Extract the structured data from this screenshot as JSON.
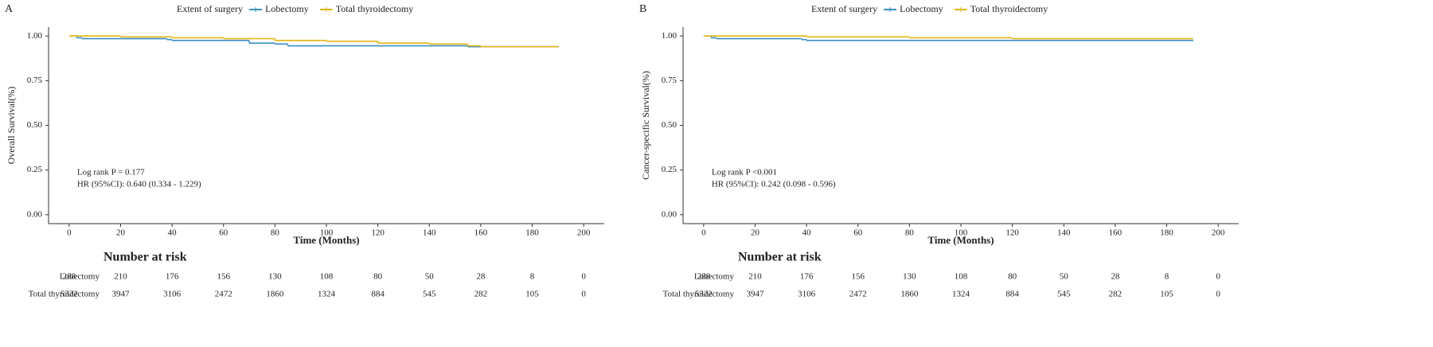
{
  "chart_data": [
    {
      "type": "step",
      "panel_label": "A",
      "legend_title": "Extent of surgery",
      "x_label": "Time (Months)",
      "y_label": "Overall Survival(%)",
      "xlim": [
        -8,
        208
      ],
      "xticks": [
        0,
        20,
        40,
        60,
        80,
        100,
        120,
        140,
        160,
        180,
        200
      ],
      "ylim": [
        -0.05,
        1.05
      ],
      "yticks": [
        {
          "value": 0,
          "label": "0.00"
        },
        {
          "value": 0.25,
          "label": "0.25"
        },
        {
          "value": 0.5,
          "label": "0.50"
        },
        {
          "value": 0.75,
          "label": "0.75"
        },
        {
          "value": 1,
          "label": "1.00"
        }
      ],
      "series": [
        {
          "name": "Lobectomy",
          "color": "#3b8fc4",
          "x": [
            0,
            3,
            5,
            10,
            38,
            40,
            70,
            72,
            80,
            85,
            100,
            155,
            190
          ],
          "values": [
            1,
            0.99,
            0.985,
            0.985,
            0.98,
            0.975,
            0.96,
            0.96,
            0.955,
            0.945,
            0.945,
            0.94,
            0.94
          ]
        },
        {
          "name": "Total thyroidectomy",
          "color": "#e3b515",
          "x": [
            0,
            20,
            40,
            60,
            80,
            100,
            120,
            140,
            155,
            160,
            190
          ],
          "values": [
            1,
            0.995,
            0.99,
            0.985,
            0.975,
            0.97,
            0.96,
            0.955,
            0.945,
            0.94,
            0.94
          ]
        }
      ],
      "annotations": [
        "Log rank P = 0.177",
        "HR (95%CI): 0.640 (0.334 - 1.229)"
      ],
      "risk_table": {
        "title": "Number at risk",
        "rows": [
          {
            "name": "Lobectomy",
            "counts": [
              288,
              210,
              176,
              156,
              130,
              108,
              80,
              50,
              28,
              8,
              0
            ]
          },
          {
            "name": "Total thyroidectomy",
            "counts": [
              5322,
              3947,
              3106,
              2472,
              1860,
              1324,
              884,
              545,
              282,
              105,
              0
            ]
          }
        ]
      }
    },
    {
      "type": "step",
      "panel_label": "B",
      "legend_title": "Extent of surgery",
      "x_label": "Time (Months)",
      "y_label": "Cancer-specific Survival(%)",
      "xlim": [
        -8,
        208
      ],
      "xticks": [
        0,
        20,
        40,
        60,
        80,
        100,
        120,
        140,
        160,
        180,
        200
      ],
      "ylim": [
        -0.05,
        1.05
      ],
      "yticks": [
        {
          "value": 0,
          "label": "0.00"
        },
        {
          "value": 0.25,
          "label": "0.25"
        },
        {
          "value": 0.5,
          "label": "0.50"
        },
        {
          "value": 0.75,
          "label": "0.75"
        },
        {
          "value": 1,
          "label": "1.00"
        }
      ],
      "series": [
        {
          "name": "Lobectomy",
          "color": "#3b8fc4",
          "x": [
            0,
            3,
            5,
            38,
            40,
            190
          ],
          "values": [
            1,
            0.99,
            0.985,
            0.98,
            0.975,
            0.975
          ]
        },
        {
          "name": "Total thyroidectomy",
          "color": "#e3b515",
          "x": [
            0,
            40,
            80,
            120,
            190
          ],
          "values": [
            1,
            0.995,
            0.99,
            0.985,
            0.985
          ]
        }
      ],
      "annotations": [
        "Log rank P <0.001",
        "HR (95%CI): 0.242 (0.098 - 0.596)"
      ],
      "risk_table": {
        "title": "Number at risk",
        "rows": [
          {
            "name": "Lobectomy",
            "counts": [
              288,
              210,
              176,
              156,
              130,
              108,
              80,
              50,
              28,
              8,
              0
            ]
          },
          {
            "name": "Total thyroidectomy",
            "counts": [
              5322,
              3947,
              3106,
              2472,
              1860,
              1324,
              884,
              545,
              282,
              105,
              0
            ]
          }
        ]
      }
    }
  ]
}
